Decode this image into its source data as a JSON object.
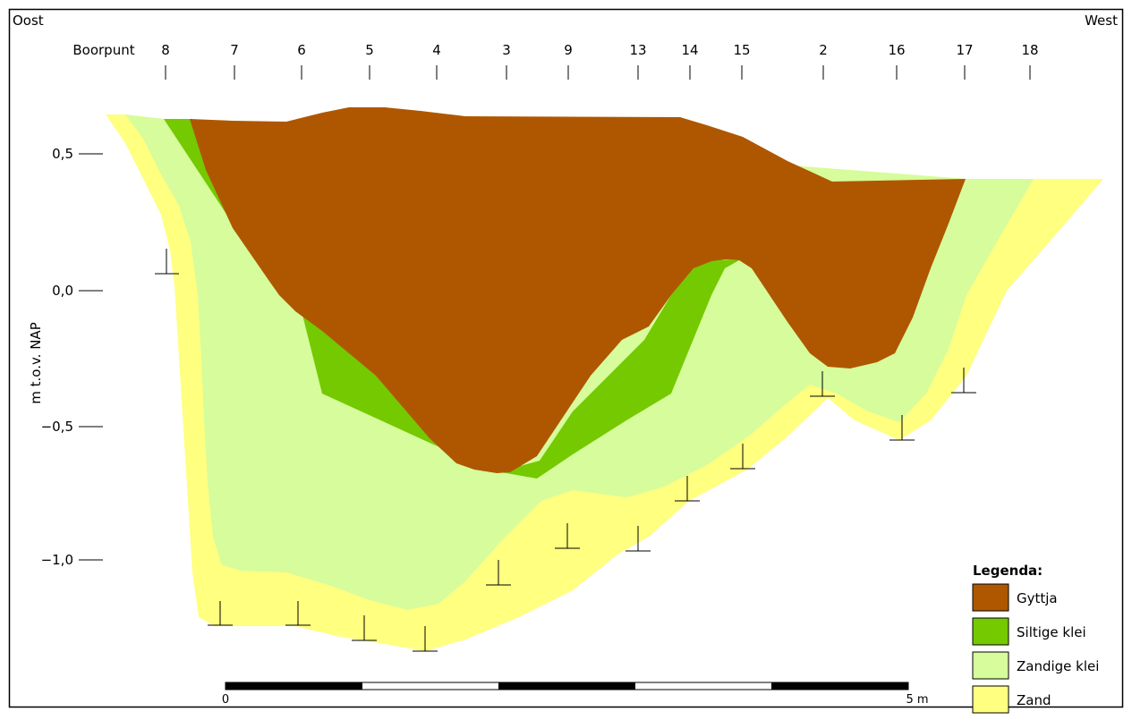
{
  "header": {
    "left": "Oost",
    "right": "West"
  },
  "boreholes": {
    "label": "Boorpunt",
    "ids": [
      "8",
      "7",
      "6",
      "5",
      "4",
      "3",
      "9",
      "13",
      "14",
      "15",
      "2",
      "16",
      "17",
      "18"
    ]
  },
  "y_axis": {
    "title": "m t.o.v. NAP",
    "ticks": [
      "0,5",
      "0,0",
      "−0,5",
      "−1,0"
    ]
  },
  "scale_bar": {
    "start": "0",
    "end": "5 m"
  },
  "legend": {
    "title": "Legenda:",
    "items": [
      {
        "label": "Gyttja",
        "color": "#AF5700"
      },
      {
        "label": "Siltige klei",
        "color": "#75C900"
      },
      {
        "label": "Zandige klei",
        "color": "#D6FC9C"
      },
      {
        "label": "Zand",
        "color": "#FFFF80"
      }
    ]
  },
  "colors": {
    "frame": "#000000",
    "background": "#FFFFFF"
  }
}
